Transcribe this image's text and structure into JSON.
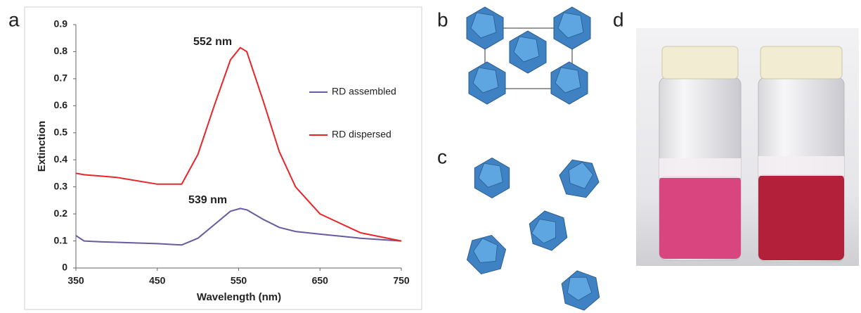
{
  "panel_labels": [
    "a",
    "b",
    "c",
    "d"
  ],
  "chart_data": {
    "type": "line",
    "x_label": "Wavelength (nm)",
    "y_label": "Extinction",
    "x": [
      350,
      360,
      380,
      400,
      450,
      480,
      500,
      520,
      540,
      552,
      560,
      580,
      600,
      620,
      650,
      700,
      750
    ],
    "series": [
      {
        "name": "RD assembled",
        "color": "#6a5aa0",
        "values": [
          0.12,
          0.1,
          0.097,
          0.095,
          0.09,
          0.085,
          0.11,
          0.16,
          0.21,
          0.22,
          0.215,
          0.18,
          0.15,
          0.135,
          0.125,
          0.11,
          0.1
        ]
      },
      {
        "name": "RD dispersed",
        "color": "#e8262a",
        "values": [
          0.35,
          0.345,
          0.34,
          0.335,
          0.31,
          0.31,
          0.42,
          0.6,
          0.77,
          0.815,
          0.8,
          0.62,
          0.43,
          0.3,
          0.2,
          0.13,
          0.1
        ]
      }
    ],
    "annotations": [
      "552 nm",
      "539 nm"
    ],
    "xlim": [
      350,
      750
    ],
    "xticks": [
      350,
      450,
      550,
      650,
      750
    ],
    "ylim": [
      0,
      0.9
    ],
    "yticks": [
      0,
      0.1,
      0.2,
      0.3,
      0.4,
      0.5,
      0.6,
      0.7,
      0.8,
      0.9
    ],
    "grid": false,
    "legend": "right"
  }
}
